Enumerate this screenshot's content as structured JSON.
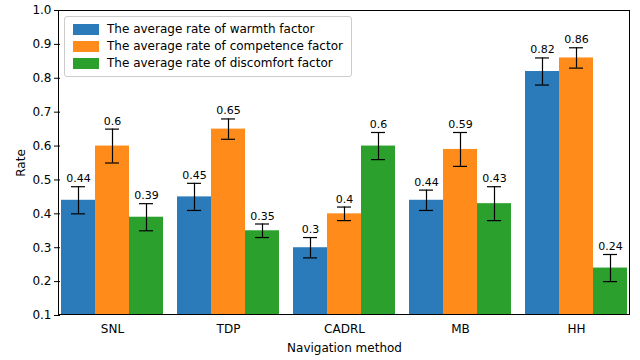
{
  "chart_data": {
    "type": "bar",
    "x_label": "Navigation method",
    "y_label": "Rate",
    "categories": [
      "SNL",
      "TDP",
      "CADRL",
      "MB",
      "HH"
    ],
    "series": [
      {
        "name": "The average rate of warmth factor",
        "color": "#2b7bba",
        "values": [
          0.44,
          0.45,
          0.3,
          0.44,
          0.82
        ],
        "errors": [
          0.04,
          0.04,
          0.03,
          0.03,
          0.04
        ]
      },
      {
        "name": "The average rate of competence factor",
        "color": "#ff8c1a",
        "values": [
          0.6,
          0.65,
          0.4,
          0.59,
          0.86
        ],
        "errors": [
          0.05,
          0.03,
          0.02,
          0.05,
          0.03
        ]
      },
      {
        "name": "The average rate of discomfort factor",
        "color": "#2ca02c",
        "values": [
          0.39,
          0.35,
          0.6,
          0.43,
          0.24
        ],
        "errors": [
          0.04,
          0.02,
          0.04,
          0.05,
          0.04
        ]
      }
    ],
    "ylim": [
      0.1,
      1
    ],
    "yticks": [
      0.1,
      0.2,
      0.3,
      0.4,
      0.5,
      0.6,
      0.7,
      0.8,
      0.9,
      {
        "value": 1,
        "label": "1.0"
      }
    ],
    "grid": false,
    "legend": "upper left",
    "data_labels": true
  }
}
